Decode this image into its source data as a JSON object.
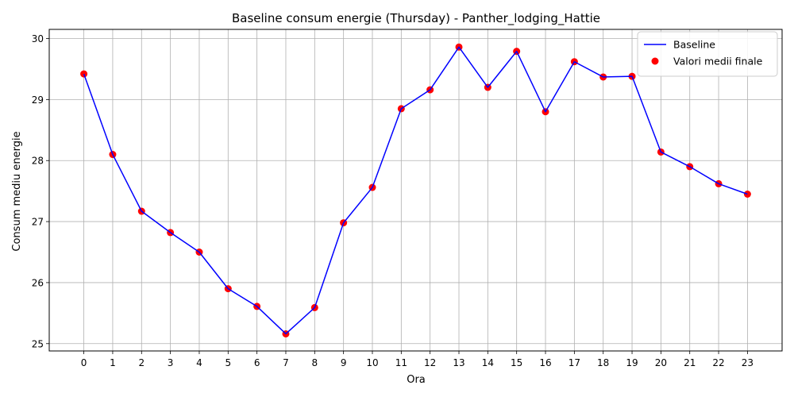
{
  "chart_data": {
    "type": "line",
    "title": "Baseline consum energie (Thursday) - Panther_lodging_Hattie",
    "xlabel": "Ora",
    "ylabel": "Consum mediu energie",
    "x": [
      0,
      1,
      2,
      3,
      4,
      5,
      6,
      7,
      8,
      9,
      10,
      11,
      12,
      13,
      14,
      15,
      16,
      17,
      18,
      19,
      20,
      21,
      22,
      23
    ],
    "x_tick_labels": [
      "0",
      "1",
      "2",
      "3",
      "4",
      "5",
      "6",
      "7",
      "8",
      "9",
      "10",
      "11",
      "12",
      "13",
      "14",
      "15",
      "16",
      "17",
      "18",
      "19",
      "20",
      "21",
      "22",
      "23"
    ],
    "xlim": [
      -1.2,
      24.2
    ],
    "ylim": [
      24.88,
      30.15
    ],
    "y_ticks": [
      25,
      26,
      27,
      28,
      29,
      30
    ],
    "y_tick_labels": [
      "25",
      "26",
      "27",
      "28",
      "29",
      "30"
    ],
    "grid": true,
    "legend_position": "top-right",
    "series": [
      {
        "name": "Baseline",
        "kind": "line",
        "color": "#0000ff",
        "values": [
          29.42,
          28.1,
          27.17,
          26.82,
          26.5,
          25.9,
          25.61,
          25.16,
          25.59,
          26.98,
          27.56,
          28.85,
          29.16,
          29.86,
          29.2,
          29.79,
          28.8,
          29.62,
          29.37,
          29.38,
          28.14,
          27.9,
          27.62,
          27.45
        ]
      },
      {
        "name": "Valori medii finale",
        "kind": "scatter",
        "color": "#ff0000",
        "values": [
          29.42,
          28.1,
          27.17,
          26.82,
          26.5,
          25.9,
          25.61,
          25.16,
          25.59,
          26.98,
          27.56,
          28.85,
          29.16,
          29.86,
          29.2,
          29.79,
          28.8,
          29.62,
          29.37,
          29.38,
          28.14,
          27.9,
          27.62,
          27.45
        ]
      }
    ]
  }
}
